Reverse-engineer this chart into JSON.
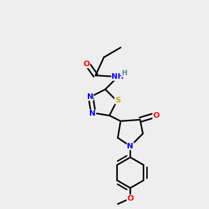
{
  "bg_color": "#eeeeee",
  "atom_colors": {
    "C": "#000000",
    "N": "#0000ff",
    "O": "#ff0000",
    "S": "#ccaa00",
    "H": "#4a9090"
  },
  "bond_color": "#000000",
  "bond_width": 1.6
}
